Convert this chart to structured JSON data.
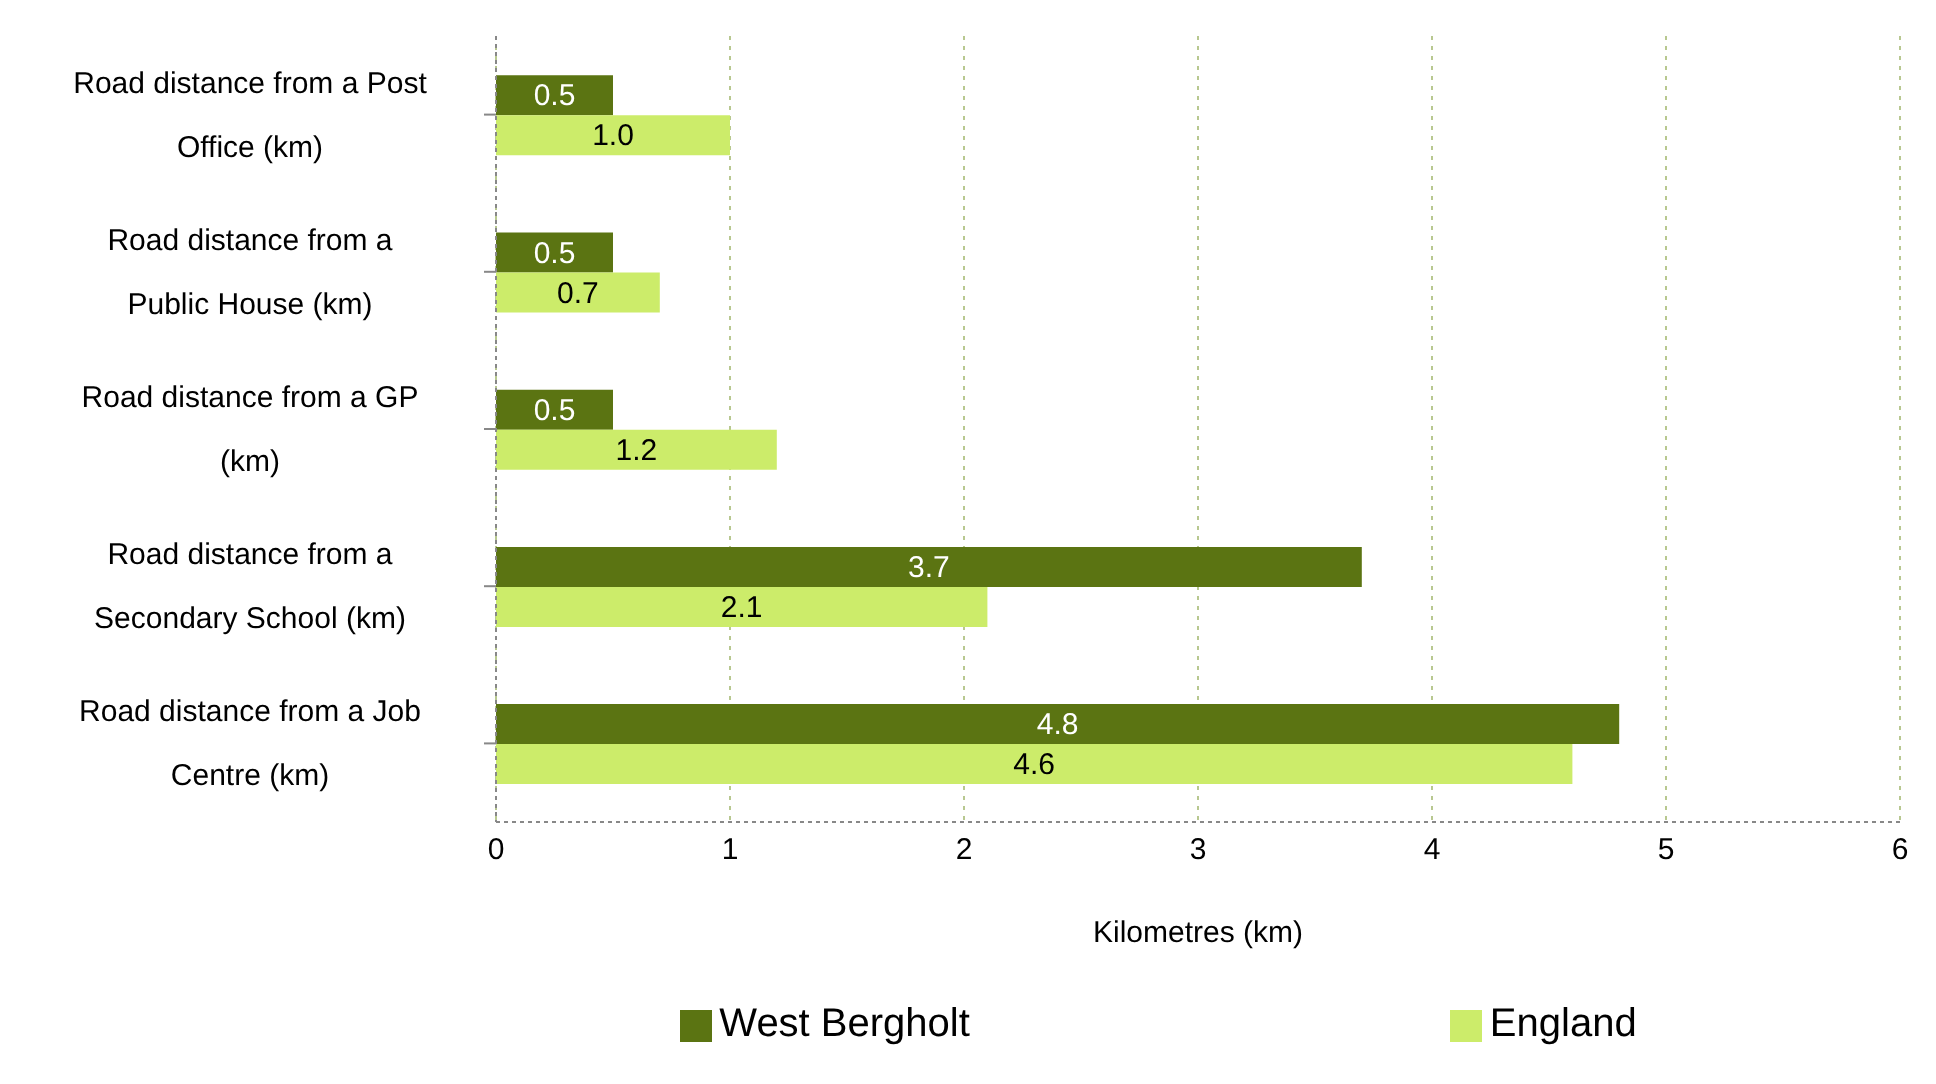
{
  "chart_data": {
    "type": "bar",
    "orientation": "horizontal",
    "xlabel": "Kilometres (km)",
    "categories": [
      "Road distance from a Post Office (km)",
      "Road distance from a Public House (km)",
      "Road distance from a GP (km)",
      "Road distance from a Secondary School (km)",
      "Road distance from a Job Centre (km)"
    ],
    "series": [
      {
        "name": "West Bergholt",
        "color": "#5b7412",
        "values": [
          0.5,
          0.5,
          0.5,
          3.7,
          4.8
        ],
        "value_labels": [
          "0.5",
          "0.5",
          "0.5",
          "3.7",
          "4.8"
        ]
      },
      {
        "name": "England",
        "color": "#ccec6a",
        "values": [
          1.0,
          0.7,
          1.2,
          2.1,
          4.6
        ],
        "value_labels": [
          "1.0",
          "0.7",
          "1.2",
          "2.1",
          "4.6"
        ]
      }
    ],
    "xlim": [
      0,
      6
    ],
    "xticks": [
      0,
      1,
      2,
      3,
      4,
      5,
      6
    ],
    "grid": "x",
    "legend": "bottom"
  }
}
